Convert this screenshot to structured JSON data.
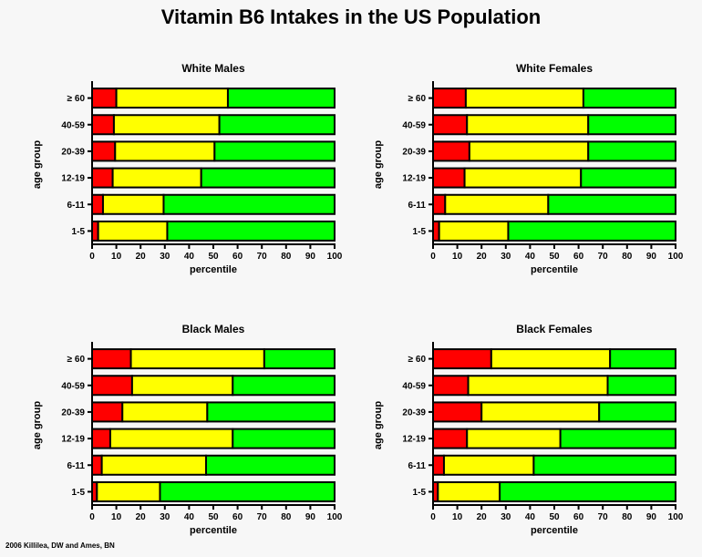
{
  "title": "Vitamin B6 Intakes in the US Population",
  "credit": "2006 Killilea,  DW and Ames,  BN",
  "chart_data": [
    {
      "type": "bar",
      "orientation": "horizontal",
      "stacked": true,
      "title": "White Males",
      "xlabel": "percentile",
      "ylabel": "age group",
      "xlim": [
        0,
        100
      ],
      "xticks": [
        0,
        10,
        20,
        30,
        40,
        50,
        60,
        70,
        80,
        90,
        100
      ],
      "categories": [
        "≥ 60",
        "40-59",
        "20-39",
        "12-19",
        "6-11",
        "1-5"
      ],
      "series": [
        {
          "name": "red",
          "color": "#ff0000",
          "values": [
            10,
            9,
            9.5,
            8.5,
            4.5,
            2.5
          ]
        },
        {
          "name": "yellow",
          "color": "#ffff00",
          "values": [
            46,
            43.5,
            41,
            36.5,
            25,
            28.5
          ]
        },
        {
          "name": "green",
          "color": "#00ff00",
          "values": [
            44,
            47.5,
            49.5,
            55,
            70.5,
            69
          ]
        }
      ]
    },
    {
      "type": "bar",
      "orientation": "horizontal",
      "stacked": true,
      "title": "White Females",
      "xlabel": "percentile",
      "ylabel": "age group",
      "xlim": [
        0,
        100
      ],
      "xticks": [
        0,
        10,
        20,
        30,
        40,
        50,
        60,
        70,
        80,
        90,
        100
      ],
      "categories": [
        "≥ 60",
        "40-59",
        "20-39",
        "12-19",
        "6-11",
        "1-5"
      ],
      "series": [
        {
          "name": "red",
          "color": "#ff0000",
          "values": [
            13.5,
            14,
            15,
            13,
            5,
            2.5
          ]
        },
        {
          "name": "yellow",
          "color": "#ffff00",
          "values": [
            48.5,
            50,
            49,
            48,
            42.5,
            28.5
          ]
        },
        {
          "name": "green",
          "color": "#00ff00",
          "values": [
            38,
            36,
            36,
            39,
            52.5,
            69
          ]
        }
      ]
    },
    {
      "type": "bar",
      "orientation": "horizontal",
      "stacked": true,
      "title": "Black Males",
      "xlabel": "percentile",
      "ylabel": "age group",
      "xlim": [
        0,
        100
      ],
      "xticks": [
        0,
        10,
        20,
        30,
        40,
        50,
        60,
        70,
        80,
        90,
        100
      ],
      "categories": [
        "≥ 60",
        "40-59",
        "20-39",
        "12-19",
        "6-11",
        "1-5"
      ],
      "series": [
        {
          "name": "red",
          "color": "#ff0000",
          "values": [
            16,
            16.5,
            12.5,
            7.5,
            4,
            2
          ]
        },
        {
          "name": "yellow",
          "color": "#ffff00",
          "values": [
            55,
            41.5,
            35,
            50.5,
            43,
            26
          ]
        },
        {
          "name": "green",
          "color": "#00ff00",
          "values": [
            29,
            42,
            52.5,
            42,
            53,
            72
          ]
        }
      ]
    },
    {
      "type": "bar",
      "orientation": "horizontal",
      "stacked": true,
      "title": "Black Females",
      "xlabel": "percentile",
      "ylabel": "age group",
      "xlim": [
        0,
        100
      ],
      "xticks": [
        0,
        10,
        20,
        30,
        40,
        50,
        60,
        70,
        80,
        90,
        100
      ],
      "categories": [
        "≥ 60",
        "40-59",
        "20-39",
        "12-19",
        "6-11",
        "1-5"
      ],
      "series": [
        {
          "name": "red",
          "color": "#ff0000",
          "values": [
            24,
            14.5,
            20,
            14,
            4.5,
            2
          ]
        },
        {
          "name": "yellow",
          "color": "#ffff00",
          "values": [
            49,
            57.5,
            48.5,
            38.5,
            37,
            25.5
          ]
        },
        {
          "name": "green",
          "color": "#00ff00",
          "values": [
            27,
            28,
            31.5,
            47.5,
            58.5,
            72.5
          ]
        }
      ]
    }
  ]
}
